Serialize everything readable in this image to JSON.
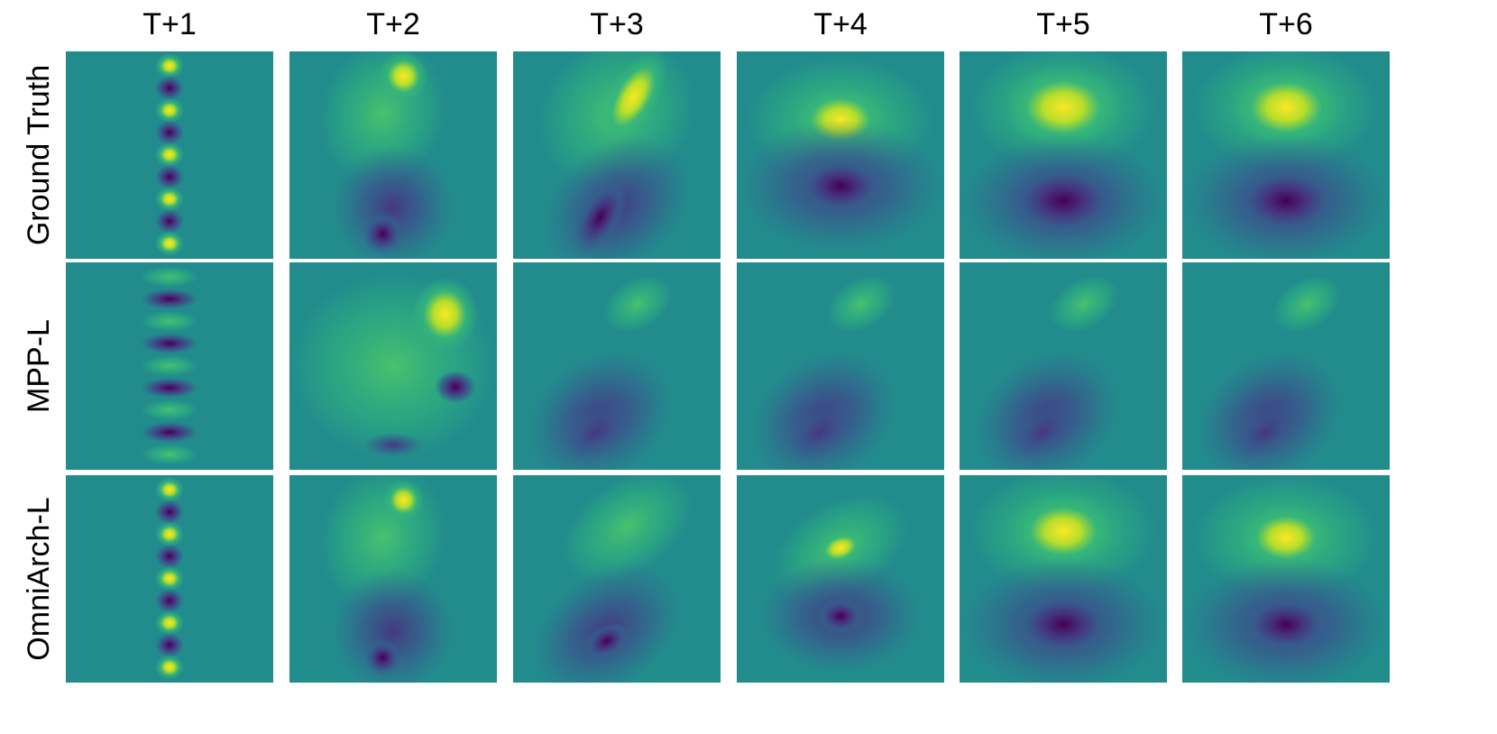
{
  "columns": [
    "T+1",
    "T+2",
    "T+3",
    "T+4",
    "T+5",
    "T+6"
  ],
  "rows": [
    "Ground Truth",
    "MPP-L",
    "OmniArch-L"
  ]
}
